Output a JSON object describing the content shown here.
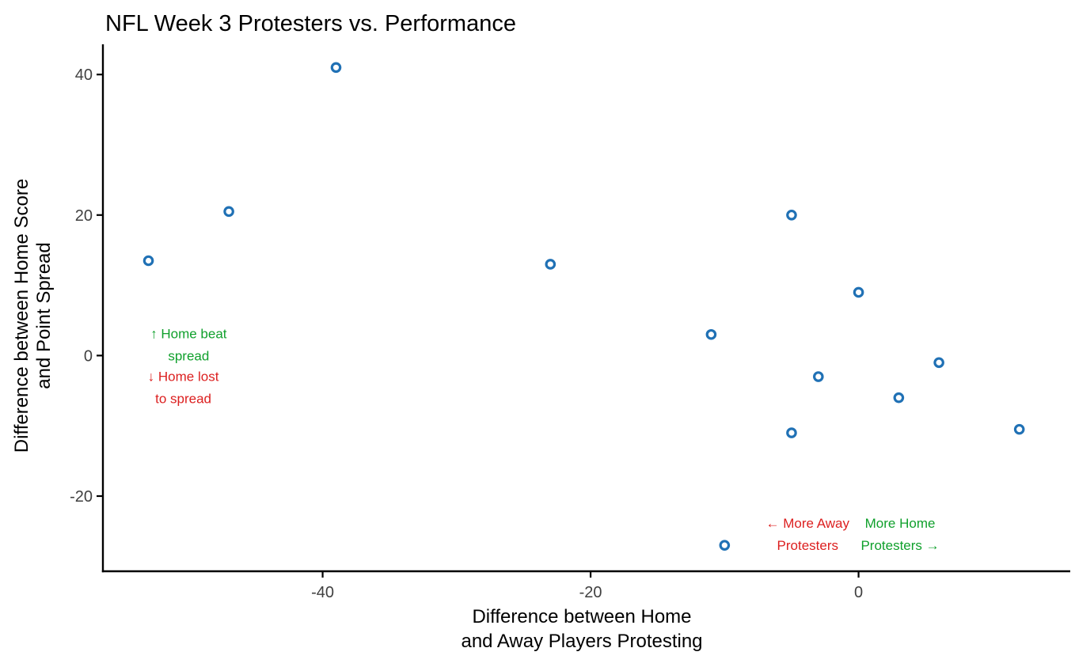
{
  "title": "NFL Week 3 Protesters vs. Performance",
  "colors": {
    "background": "#ffffff",
    "title": "#000000",
    "axis": "#000000",
    "tick_label": "#404040",
    "axis_title": "#000000",
    "point": "#2071b5",
    "green": "#10a02c",
    "red": "#dc1f1f"
  },
  "chart_data": {
    "type": "scatter",
    "title": "NFL Week 3 Protesters vs. Performance",
    "xlabel_lines": [
      "Difference between Home",
      "and Away Players Protesting"
    ],
    "ylabel_lines": [
      "Difference between Home Score",
      "and Point Spread"
    ],
    "xlim": [
      -56.4,
      15.8
    ],
    "ylim": [
      -30.7,
      44.3
    ],
    "x_ticks": [
      -40,
      -20,
      0
    ],
    "y_ticks": [
      40,
      20,
      0,
      -20
    ],
    "grid": false,
    "legend": false,
    "marker": {
      "shape": "open-circle",
      "radius": 5.2,
      "stroke_width": 3.2
    },
    "points": [
      {
        "x": -39,
        "y": 41
      },
      {
        "x": -47,
        "y": 20.5
      },
      {
        "x": -53,
        "y": 13.5
      },
      {
        "x": -23,
        "y": 13
      },
      {
        "x": -5,
        "y": 20
      },
      {
        "x": 0,
        "y": 9
      },
      {
        "x": -11,
        "y": 3
      },
      {
        "x": -3,
        "y": -3
      },
      {
        "x": 6,
        "y": -1
      },
      {
        "x": 3,
        "y": -6
      },
      {
        "x": -5,
        "y": -11
      },
      {
        "x": 12,
        "y": -10.5
      },
      {
        "x": -10,
        "y": -27
      }
    ],
    "annotations": [
      {
        "name": "home-beat-spread-note",
        "lines": [
          "↑ Home beat",
          "spread"
        ],
        "color": "green",
        "x": -50.0,
        "y": 1.7
      },
      {
        "name": "home-lost-spread-note",
        "lines": [
          "↓ Home lost",
          "to spread"
        ],
        "color": "red",
        "x": -50.4,
        "y": -4.4
      },
      {
        "name": "more-away-protesters-note",
        "lines": [
          "← More Away",
          "Protesters"
        ],
        "color": "red",
        "x": -3.8,
        "y": -25.3
      },
      {
        "name": "more-home-protesters-note",
        "lines": [
          "More Home",
          "Protesters →"
        ],
        "color": "green",
        "x": 3.1,
        "y": -25.3
      }
    ]
  }
}
